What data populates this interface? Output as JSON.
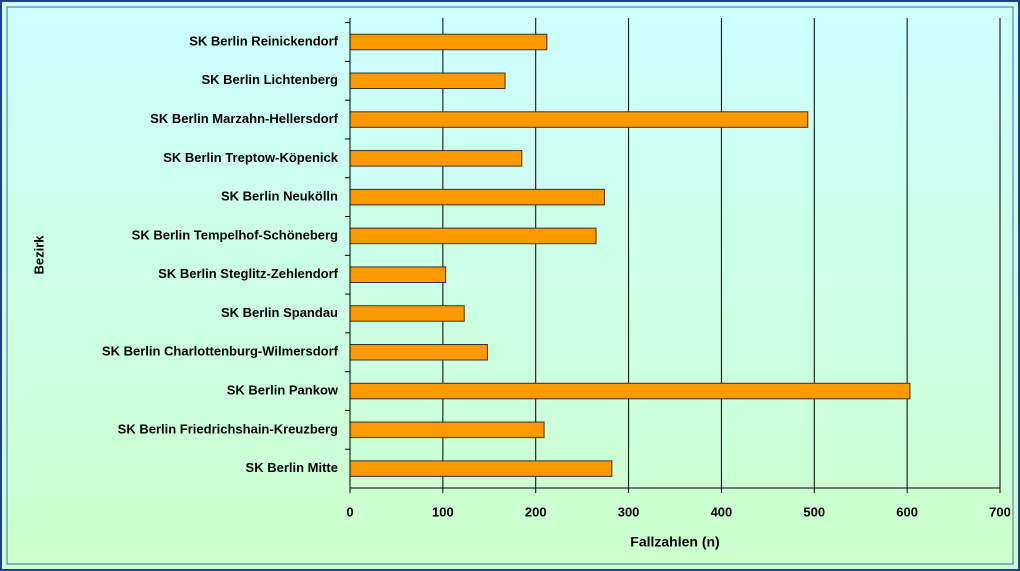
{
  "chart_data": {
    "type": "bar",
    "orientation": "horizontal",
    "categories": [
      "SK Berlin Reinickendorf",
      "SK Berlin Lichtenberg",
      "SK Berlin Marzahn-Hellersdorf",
      "SK Berlin Treptow-Köpenick",
      "SK Berlin Neukölln",
      "SK Berlin Tempelhof-Schöneberg",
      "SK Berlin Steglitz-Zehlendorf",
      "SK Berlin Spandau",
      "SK Berlin Charlottenburg-Wilmersdorf",
      "SK Berlin Pankow",
      "SK Berlin Friedrichshain-Kreuzberg",
      "SK Berlin Mitte"
    ],
    "values": [
      212,
      167,
      493,
      185,
      274,
      265,
      103,
      123,
      148,
      603,
      209,
      282
    ],
    "color": "#ff9900",
    "xlim": [
      0,
      700
    ],
    "xticks": [
      0,
      100,
      200,
      300,
      400,
      500,
      600,
      700
    ],
    "grid": true,
    "xlabel": "Fallzahlen (n)",
    "ylabel": "Bezirk"
  }
}
